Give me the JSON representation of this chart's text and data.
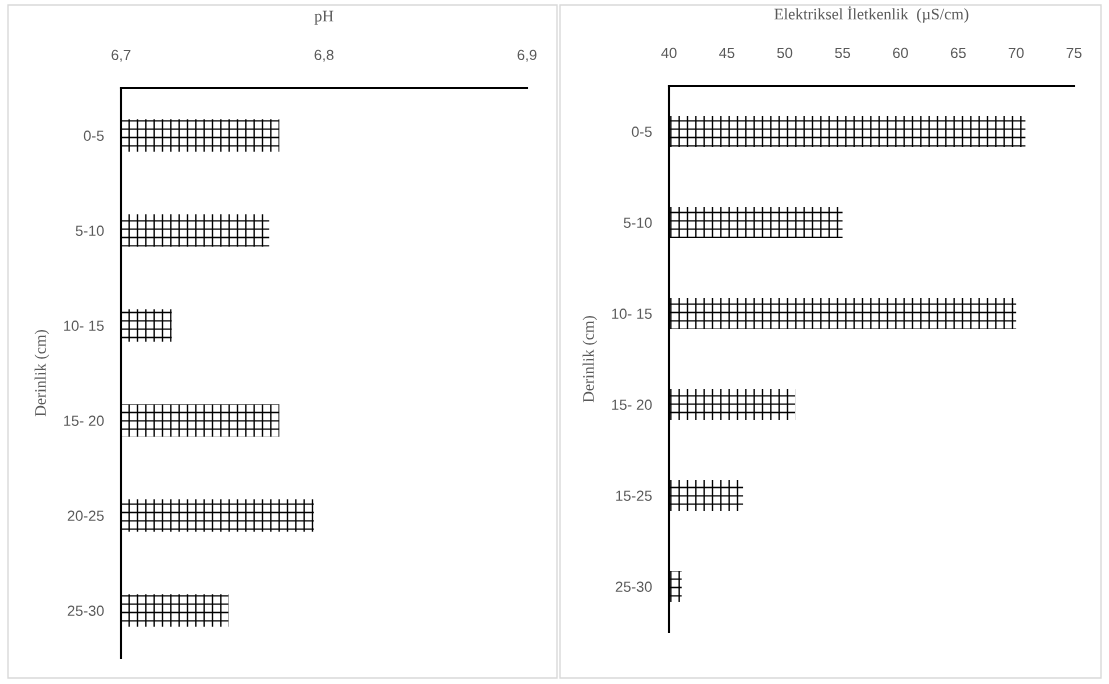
{
  "chart_data": [
    {
      "type": "bar",
      "orientation": "horizontal",
      "title": "pH",
      "ylabel": "Derinlik (cm)",
      "categories": [
        "0-5",
        "5-10",
        "10- 15",
        "15- 20",
        "20-25",
        "25-30"
      ],
      "series": [
        {
          "color": "#000000",
          "values": [
            6.778,
            6.773,
            6.725,
            6.778,
            6.795,
            6.753
          ]
        }
      ],
      "xlim": [
        6.7,
        6.9
      ],
      "xticks": [
        {
          "value": 6.7,
          "label": "6,7"
        },
        {
          "value": 6.8,
          "label": "6,8"
        },
        {
          "value": 6.9,
          "label": "6,9"
        }
      ],
      "grid": false,
      "legend": false
    },
    {
      "type": "bar",
      "orientation": "horizontal",
      "title": "Elektriksel İletkenlik  (µS/cm)",
      "ylabel": "Derinlik (cm)",
      "categories": [
        "0-5",
        "5-10",
        "10- 15",
        "15- 20",
        "15-25",
        "25-30"
      ],
      "series": [
        {
          "color": "#000000",
          "values": [
            70.8,
            55.0,
            70.0,
            50.9,
            46.4,
            41.1
          ]
        }
      ],
      "xlim": [
        40,
        75
      ],
      "xticks": [
        40,
        45,
        50,
        55,
        60,
        65,
        70,
        75
      ],
      "grid": false,
      "legend": false
    }
  ]
}
